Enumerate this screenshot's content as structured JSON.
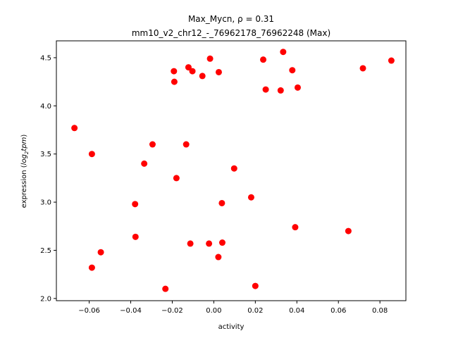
{
  "chart_data": {
    "type": "scatter",
    "title_line1": "Max_Mycn, ρ = 0.31",
    "title_line2": "mm10_v2_chr12_-_76962178_76962248 (Max)",
    "xlabel": "activity",
    "ylabel_prefix": "expression (",
    "ylabel_log": "log",
    "ylabel_sub": "2",
    "ylabel_tpm": "tpm",
    "ylabel_suffix": ")",
    "xlim": [
      -0.0758,
      0.0925
    ],
    "ylim": [
      1.977,
      4.675
    ],
    "x_ticks": [
      -0.06,
      -0.04,
      -0.02,
      0.0,
      0.02,
      0.04,
      0.06,
      0.08
    ],
    "x_tick_labels": [
      "−0.06",
      "−0.04",
      "−0.02",
      "0.00",
      "0.02",
      "0.04",
      "0.06",
      "0.08"
    ],
    "y_ticks": [
      2.0,
      2.5,
      3.0,
      3.5,
      4.0,
      4.5
    ],
    "y_tick_labels": [
      "2.0",
      "2.5",
      "3.0",
      "3.5",
      "4.0",
      "4.5"
    ],
    "grid": false,
    "point_color": "#ff0000",
    "points": [
      [
        -0.0671,
        3.77
      ],
      [
        -0.0587,
        3.5
      ],
      [
        -0.0587,
        2.32
      ],
      [
        -0.0544,
        2.48
      ],
      [
        -0.0379,
        2.98
      ],
      [
        -0.0377,
        2.64
      ],
      [
        -0.0335,
        3.4
      ],
      [
        -0.0295,
        3.6
      ],
      [
        -0.0233,
        2.1
      ],
      [
        -0.0192,
        4.36
      ],
      [
        -0.019,
        4.25
      ],
      [
        -0.018,
        3.25
      ],
      [
        -0.0133,
        3.6
      ],
      [
        -0.0122,
        4.4
      ],
      [
        -0.0113,
        2.57
      ],
      [
        -0.0103,
        4.36
      ],
      [
        -0.0055,
        4.31
      ],
      [
        -0.0023,
        2.57
      ],
      [
        -0.0018,
        4.49
      ],
      [
        0.0022,
        2.43
      ],
      [
        0.0024,
        4.35
      ],
      [
        0.0039,
        2.99
      ],
      [
        0.0041,
        2.58
      ],
      [
        0.0098,
        3.35
      ],
      [
        0.018,
        3.05
      ],
      [
        0.02,
        2.13
      ],
      [
        0.0238,
        4.48
      ],
      [
        0.025,
        4.17
      ],
      [
        0.0322,
        4.16
      ],
      [
        0.0334,
        4.56
      ],
      [
        0.0378,
        4.37
      ],
      [
        0.0392,
        2.74
      ],
      [
        0.0404,
        4.19
      ],
      [
        0.0648,
        2.7
      ],
      [
        0.0718,
        4.39
      ],
      [
        0.0855,
        4.47
      ]
    ]
  }
}
